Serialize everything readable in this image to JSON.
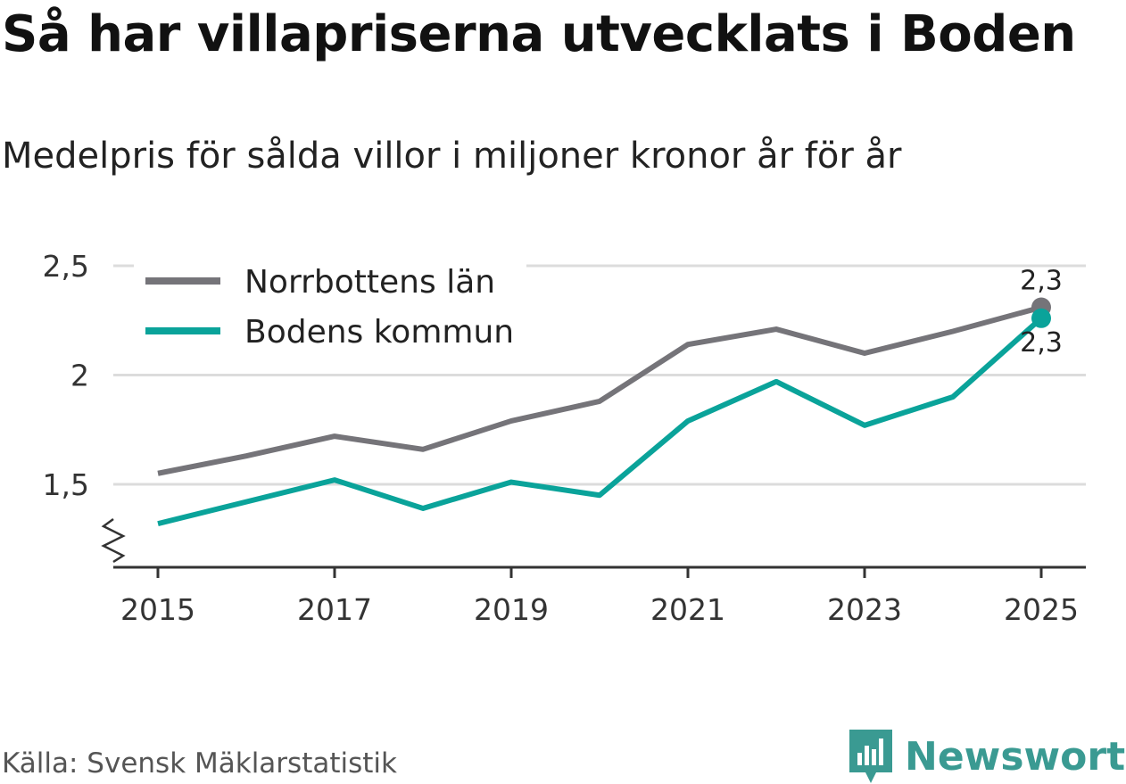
{
  "chart_data": {
    "type": "line",
    "title": "Så har villapriserna utvecklats i Boden",
    "subtitle": "Medelpris för sålda villor i miljoner kronor år för år",
    "x": [
      2015,
      2016,
      2017,
      2018,
      2019,
      2020,
      2021,
      2022,
      2023,
      2024,
      2025
    ],
    "x_tick_labels": [
      "2015",
      "2017",
      "2019",
      "2021",
      "2023",
      "2025"
    ],
    "y_tick_labels": [
      "2,5",
      "2",
      "1,5"
    ],
    "y_ticks": [
      2.5,
      2.0,
      1.5
    ],
    "ylim": [
      1.13,
      2.55
    ],
    "y_axis_break": true,
    "grid": true,
    "legend_position": "top-left",
    "series": [
      {
        "name": "Norrbottens län",
        "color": "#757479",
        "values": [
          1.55,
          1.63,
          1.72,
          1.66,
          1.79,
          1.88,
          2.14,
          2.21,
          2.1,
          2.2,
          2.31
        ],
        "end_label": "2,3"
      },
      {
        "name": "Bodens kommun",
        "color": "#0aa39a",
        "values": [
          1.32,
          1.42,
          1.52,
          1.39,
          1.51,
          1.45,
          1.79,
          1.97,
          1.77,
          1.9,
          2.26
        ],
        "end_label": "2,3"
      }
    ]
  },
  "source": "Källa: Svensk Mäklarstatistik",
  "brand": {
    "name": "Newsworthy",
    "icon": "newsworthy-logo-icon",
    "color": "#3a9a92"
  }
}
